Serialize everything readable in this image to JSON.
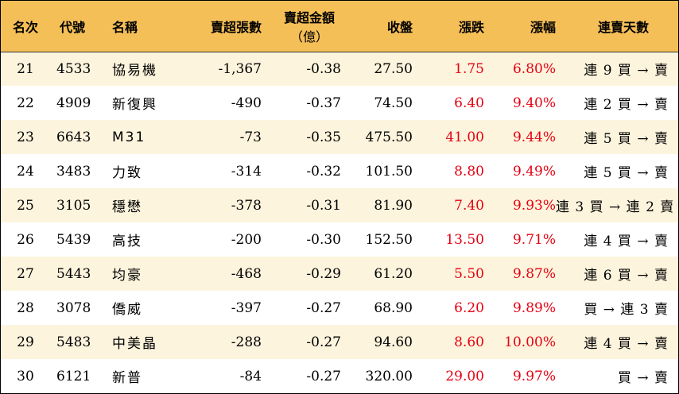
{
  "headers": {
    "rank": "名次",
    "code": "代號",
    "name": "名稱",
    "sell_lots": "賣超張數",
    "sell_amount_line1": "賣超金額",
    "sell_amount_line2": "（億）",
    "close": "收盤",
    "change": "漲跌",
    "pct": "漲幅",
    "streak": "連賣天數"
  },
  "rows": [
    {
      "rank": "21",
      "code": "4533",
      "name": "協易機",
      "sell_lots": "-1,367",
      "sell_amount": "-0.38",
      "close": "27.50",
      "change": "1.75",
      "pct": "6.80%",
      "streak": "連 9 買 → 賣"
    },
    {
      "rank": "22",
      "code": "4909",
      "name": "新復興",
      "sell_lots": "-490",
      "sell_amount": "-0.37",
      "close": "74.50",
      "change": "6.40",
      "pct": "9.40%",
      "streak": "連 2 買 → 賣"
    },
    {
      "rank": "23",
      "code": "6643",
      "name": "M31",
      "sell_lots": "-73",
      "sell_amount": "-0.35",
      "close": "475.50",
      "change": "41.00",
      "pct": "9.44%",
      "streak": "連 5 買 → 賣"
    },
    {
      "rank": "24",
      "code": "3483",
      "name": "力致",
      "sell_lots": "-314",
      "sell_amount": "-0.32",
      "close": "101.50",
      "change": "8.80",
      "pct": "9.49%",
      "streak": "連 5 買 → 賣"
    },
    {
      "rank": "25",
      "code": "3105",
      "name": "穩懋",
      "sell_lots": "-378",
      "sell_amount": "-0.31",
      "close": "81.90",
      "change": "7.40",
      "pct": "9.93%",
      "streak": "連 3 買 → 連 2 賣"
    },
    {
      "rank": "26",
      "code": "5439",
      "name": "高技",
      "sell_lots": "-200",
      "sell_amount": "-0.30",
      "close": "152.50",
      "change": "13.50",
      "pct": "9.71%",
      "streak": "連 4 買 → 賣"
    },
    {
      "rank": "27",
      "code": "5443",
      "name": "均豪",
      "sell_lots": "-468",
      "sell_amount": "-0.29",
      "close": "61.20",
      "change": "5.50",
      "pct": "9.87%",
      "streak": "連 6 買 → 賣"
    },
    {
      "rank": "28",
      "code": "3078",
      "name": "僑威",
      "sell_lots": "-397",
      "sell_amount": "-0.27",
      "close": "68.90",
      "change": "6.20",
      "pct": "9.89%",
      "streak": "買 → 連 3 賣"
    },
    {
      "rank": "29",
      "code": "5483",
      "name": "中美晶",
      "sell_lots": "-288",
      "sell_amount": "-0.27",
      "close": "94.60",
      "change": "8.60",
      "pct": "10.00%",
      "streak": "連 4 買 → 賣"
    },
    {
      "rank": "30",
      "code": "6121",
      "name": "新普",
      "sell_lots": "-84",
      "sell_amount": "-0.27",
      "close": "320.00",
      "change": "29.00",
      "pct": "9.97%",
      "streak": "買 → 賣"
    }
  ],
  "colors": {
    "header_bg": "#f5bf57",
    "odd_row_bg": "#fdf4dd",
    "even_row_bg": "#ffffff",
    "up_red": "#e60012"
  }
}
